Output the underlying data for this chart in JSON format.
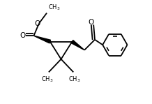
{
  "bg_color": "#ffffff",
  "line_color": "#000000",
  "lw": 1.3,
  "figsize": [
    2.18,
    1.49
  ],
  "dpi": 100,
  "xlim": [
    0.0,
    1.0
  ],
  "ylim": [
    0.1,
    0.9
  ]
}
